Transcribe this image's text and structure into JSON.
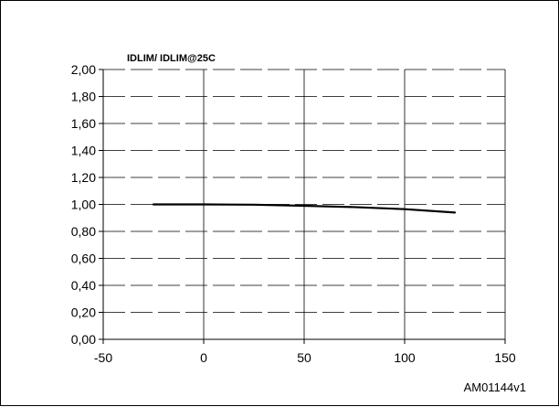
{
  "chart_data": {
    "type": "line",
    "ylabel": "IDLIM/ IDLIM@25C",
    "xlim": [
      -50,
      150
    ],
    "ylim": [
      0,
      2
    ],
    "x_ticks": [
      -50,
      0,
      50,
      100,
      150
    ],
    "x_tick_labels": [
      "-50",
      "0",
      "50",
      "100",
      "150"
    ],
    "y_ticks": [
      0,
      0.2,
      0.4,
      0.6,
      0.8,
      1.0,
      1.2,
      1.4,
      1.6,
      1.8,
      2.0
    ],
    "y_tick_labels": [
      "0,00",
      "0,20",
      "0,40",
      "0,60",
      "0,80",
      "1,00",
      "1,20",
      "1,40",
      "1,60",
      "1,80",
      "2,00"
    ],
    "grid": {
      "x": "solid",
      "y": "dashed"
    },
    "series": [
      {
        "x": [
          -25,
          0,
          25,
          50,
          75,
          100,
          125
        ],
        "y": [
          1.0,
          1.0,
          0.998,
          0.99,
          0.98,
          0.965,
          0.94
        ]
      }
    ],
    "line_color": "#000000",
    "grid_color": "#000000"
  },
  "figure_code": "AM01144v1"
}
